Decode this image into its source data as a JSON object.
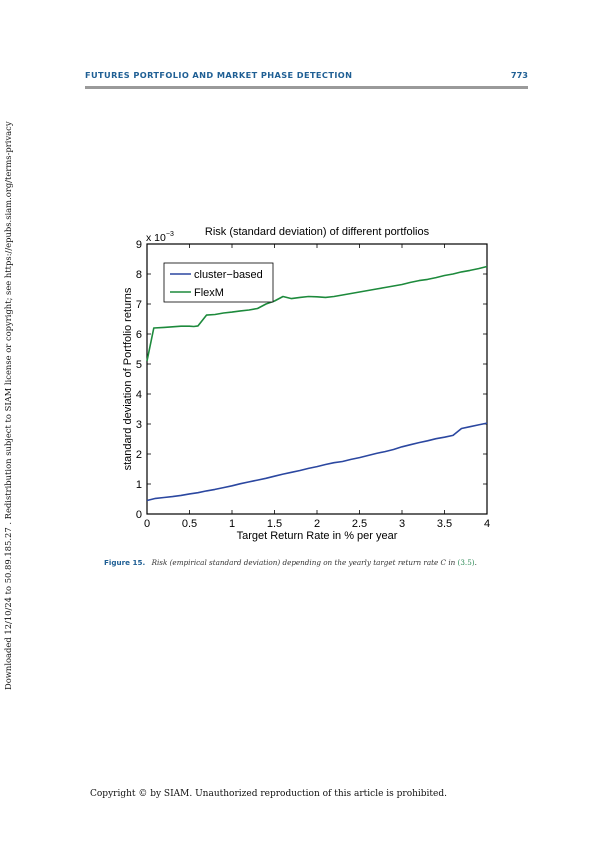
{
  "header": {
    "title": "FUTURES PORTFOLIO AND MARKET PHASE DETECTION",
    "page_number": "773"
  },
  "side_note": "Downloaded 12/10/24 to 50.89.185.27 . Redistribution subject to SIAM license or copyright; see https://epubs.siam.org/terms-privacy",
  "caption": {
    "label": "Figure 15.",
    "text": "Risk (empirical standard deviation) depending on the yearly target return rate C in",
    "ref": "(3.5)",
    "end": "."
  },
  "footer": "Copyright © by SIAM. Unauthorized reproduction of this article is prohibited.",
  "colors": {
    "accent": "#1f5f94",
    "cluster": "#2b47a0",
    "flexm": "#1d8a3c"
  },
  "chart_data": {
    "type": "line",
    "title": "Risk (standard deviation) of different portfolios",
    "xlabel": "Target Return Rate in % per year",
    "ylabel": "standard deviation of Portfolio returns",
    "y_multiplier": "x 10",
    "y_multiplier_exp": "−3",
    "xlim": [
      0,
      4
    ],
    "ylim": [
      0,
      9
    ],
    "xticks": [
      "0",
      "0.5",
      "1",
      "1.5",
      "2",
      "2.5",
      "3",
      "3.5",
      "4"
    ],
    "yticks": [
      "0",
      "1",
      "2",
      "3",
      "4",
      "5",
      "6",
      "7",
      "8",
      "9"
    ],
    "legend_position": "top-left",
    "grid": false,
    "series": [
      {
        "name": "cluster−based",
        "color": "#2b47a0",
        "x": [
          0,
          0.1,
          0.2,
          0.3,
          0.4,
          0.5,
          0.6,
          0.7,
          0.8,
          0.9,
          1.0,
          1.1,
          1.2,
          1.3,
          1.4,
          1.5,
          1.6,
          1.7,
          1.8,
          1.9,
          2.0,
          2.1,
          2.2,
          2.3,
          2.4,
          2.5,
          2.6,
          2.7,
          2.8,
          2.9,
          3.0,
          3.1,
          3.2,
          3.3,
          3.4,
          3.5,
          3.6,
          3.7,
          3.8,
          3.9,
          4.0
        ],
        "y": [
          0.45,
          0.52,
          0.55,
          0.58,
          0.62,
          0.67,
          0.71,
          0.77,
          0.82,
          0.88,
          0.94,
          1.01,
          1.07,
          1.13,
          1.19,
          1.26,
          1.33,
          1.39,
          1.45,
          1.52,
          1.58,
          1.65,
          1.71,
          1.75,
          1.82,
          1.88,
          1.95,
          2.02,
          2.08,
          2.15,
          2.24,
          2.31,
          2.38,
          2.44,
          2.51,
          2.56,
          2.62,
          2.85,
          2.91,
          2.97,
          3.03
        ]
      },
      {
        "name": "FlexM",
        "color": "#1d8a3c",
        "x": [
          0,
          0.08,
          0.2,
          0.3,
          0.4,
          0.5,
          0.55,
          0.6,
          0.7,
          0.8,
          0.9,
          1.0,
          1.1,
          1.2,
          1.3,
          1.4,
          1.5,
          1.6,
          1.7,
          1.8,
          1.9,
          2.0,
          2.1,
          2.2,
          2.3,
          2.4,
          2.5,
          2.6,
          2.7,
          2.8,
          2.9,
          3.0,
          3.1,
          3.2,
          3.3,
          3.4,
          3.5,
          3.6,
          3.7,
          3.8,
          3.9,
          4.0
        ],
        "y": [
          5.1,
          6.2,
          6.22,
          6.24,
          6.26,
          6.26,
          6.25,
          6.27,
          6.63,
          6.65,
          6.7,
          6.73,
          6.77,
          6.8,
          6.85,
          7.0,
          7.1,
          7.25,
          7.18,
          7.22,
          7.25,
          7.24,
          7.22,
          7.25,
          7.3,
          7.35,
          7.4,
          7.45,
          7.5,
          7.55,
          7.6,
          7.65,
          7.72,
          7.78,
          7.82,
          7.88,
          7.95,
          8.0,
          8.07,
          8.12,
          8.18,
          8.25
        ]
      }
    ]
  }
}
